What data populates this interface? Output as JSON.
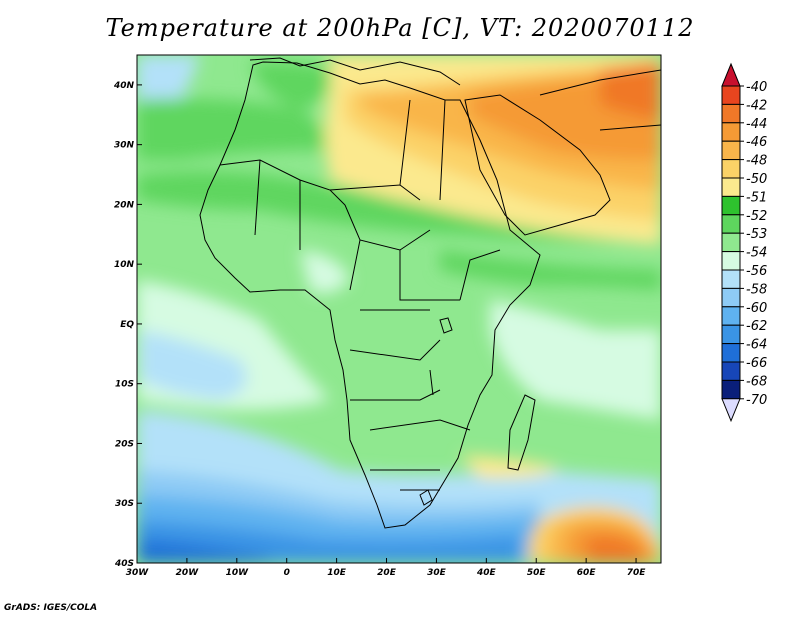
{
  "title": "Temperature at 200hPa [C], VT: 2020070112",
  "credit": "GrADS: IGES/COLA",
  "map": {
    "projection": "lat-lon",
    "lon_range": [
      -30,
      75
    ],
    "lat_range": [
      -40,
      45
    ],
    "lat_ticks": [
      "40N",
      "30N",
      "20N",
      "10N",
      "EQ",
      "10S",
      "20S",
      "30S",
      "40S"
    ],
    "lon_ticks": [
      "30W",
      "20W",
      "10W",
      "0",
      "10E",
      "20E",
      "30E",
      "40E",
      "50E",
      "60E",
      "70E"
    ],
    "region": "Africa and Middle East"
  },
  "colorbar": {
    "levels": [
      "-40",
      "-42",
      "-44",
      "-46",
      "-48",
      "-50",
      "-51",
      "-52",
      "-53",
      "-54",
      "-56",
      "-58",
      "-60",
      "-62",
      "-64",
      "-66",
      "-68",
      "-70"
    ],
    "colors": [
      "#e8451f",
      "#f07828",
      "#f59a35",
      "#f9b54a",
      "#fbd267",
      "#fbe98e",
      "#2ec22e",
      "#5ed65e",
      "#8fe88f",
      "#d6fbe2",
      "#b3e1f9",
      "#8ecbf5",
      "#5fb2f0",
      "#3a94e5",
      "#1f6fd8",
      "#1746b8",
      "#0a1f7a"
    ],
    "over_color": "#c8102e",
    "under_color": "#dcdcff"
  }
}
